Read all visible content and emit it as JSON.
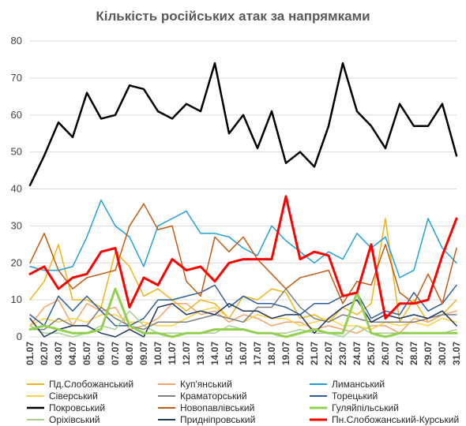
{
  "chart_data": {
    "type": "line",
    "title": "Кількість російських атак за напрямками",
    "xlabel": "",
    "ylabel": "",
    "ylim": [
      0,
      80
    ],
    "yticks": [
      0,
      10,
      20,
      30,
      40,
      50,
      60,
      70,
      80
    ],
    "grid": true,
    "legend_position": "bottom",
    "x": [
      "01.07",
      "02.07",
      "03.07",
      "04.07",
      "05.07",
      "06.07",
      "07.07",
      "08.07",
      "09.07",
      "10.07",
      "11.07",
      "12.07",
      "13.07",
      "14.07",
      "15.07",
      "16.07",
      "17.07",
      "18.07",
      "19.07",
      "20.07",
      "21.07",
      "22.07",
      "23.07",
      "24.07",
      "25.07",
      "26.07",
      "27.07",
      "28.07",
      "29.07",
      "30.07",
      "31.07"
    ],
    "series": [
      {
        "name": "Пд.Слобожанський",
        "color": "#f0b418",
        "width": 1.5,
        "values": [
          10,
          15,
          25,
          10,
          10,
          8,
          23,
          19,
          11,
          13,
          10,
          7,
          10,
          9,
          5,
          11,
          10,
          13,
          12,
          5,
          6,
          4,
          8,
          6,
          9,
          32,
          4,
          10,
          4,
          6,
          10
        ]
      },
      {
        "name": "Куп'янський",
        "color": "#f4a46a",
        "width": 1.5,
        "values": [
          3,
          8,
          10,
          3,
          9,
          7,
          8,
          2,
          3,
          5,
          9,
          9,
          6,
          7,
          4,
          6,
          5,
          3,
          4,
          4,
          2,
          3,
          2,
          1,
          3,
          3,
          1,
          5,
          4,
          6,
          7
        ]
      },
      {
        "name": "Лиманський",
        "color": "#22a0dc",
        "width": 1.5,
        "values": [
          19,
          18,
          18,
          19,
          27,
          37,
          30,
          27,
          19,
          30,
          32,
          34,
          28,
          28,
          27,
          24,
          22,
          30,
          26,
          23,
          20,
          23,
          21,
          28,
          24,
          27,
          16,
          18,
          32,
          24,
          20
        ]
      },
      {
        "name": "Сіверський",
        "color": "#ffd040",
        "width": 1.5,
        "values": [
          3,
          5,
          4,
          5,
          4,
          6,
          6,
          4,
          4,
          3,
          3,
          5,
          7,
          8,
          5,
          4,
          6,
          5,
          5,
          3,
          4,
          5,
          3,
          3,
          2,
          4,
          3,
          4,
          3,
          5,
          4
        ]
      },
      {
        "name": "Краматорський",
        "color": "#7f7f7f",
        "width": 1.5,
        "values": [
          2,
          2,
          5,
          3,
          3,
          8,
          5,
          3,
          2,
          4,
          4,
          4,
          5,
          6,
          5,
          4,
          8,
          8,
          13,
          8,
          5,
          4,
          6,
          5,
          4,
          4,
          4,
          4,
          5,
          6,
          6
        ]
      },
      {
        "name": "Торецький",
        "color": "#2e5f9c",
        "width": 1.5,
        "values": [
          6,
          3,
          11,
          7,
          11,
          7,
          3,
          3,
          5,
          10,
          10,
          11,
          12,
          14,
          8,
          11,
          9,
          9,
          8,
          6,
          9,
          9,
          11,
          12,
          5,
          7,
          6,
          12,
          7,
          9,
          14
        ]
      },
      {
        "name": "Покровський",
        "color": "#000000",
        "width": 2.5,
        "values": [
          41,
          49,
          58,
          54,
          66,
          59,
          60,
          68,
          67,
          61,
          59,
          63,
          61,
          74,
          55,
          60,
          51,
          61,
          47,
          50,
          46,
          57,
          74,
          61,
          57,
          51,
          63,
          57,
          57,
          63,
          49
        ]
      },
      {
        "name": "Новопавлівський",
        "color": "#c55a11",
        "width": 1.5,
        "values": [
          20,
          28,
          18,
          13,
          16,
          17,
          18,
          30,
          36,
          29,
          30,
          15,
          11,
          27,
          23,
          27,
          21,
          17,
          13,
          16,
          17,
          18,
          9,
          15,
          14,
          25,
          12,
          9,
          17,
          9,
          24
        ]
      },
      {
        "name": "Гуляйпільський",
        "color": "#92d050",
        "width": 3,
        "values": [
          2,
          3,
          2,
          1,
          1,
          2,
          13,
          3,
          1,
          1,
          0,
          1,
          1,
          2,
          2,
          2,
          1,
          1,
          0,
          1,
          2,
          1,
          1,
          12,
          1,
          0,
          1,
          1,
          1,
          1,
          1
        ]
      },
      {
        "name": "Оріхівський",
        "color": "#a9d18e",
        "width": 1.5,
        "values": [
          3,
          1,
          1,
          0,
          1,
          3,
          2,
          7,
          3,
          1,
          1,
          1,
          1,
          1,
          3,
          2,
          1,
          1,
          1,
          2,
          1,
          1,
          0,
          3,
          1,
          1,
          1,
          1,
          1,
          1,
          2
        ]
      },
      {
        "name": "Придніпровський",
        "color": "#1f3864",
        "width": 1.5,
        "values": [
          5,
          0,
          2,
          3,
          3,
          1,
          0,
          2,
          0,
          8,
          9,
          6,
          7,
          6,
          9,
          7,
          7,
          5,
          6,
          6,
          1,
          5,
          8,
          10,
          4,
          6,
          5,
          6,
          5,
          7,
          3
        ]
      },
      {
        "name": "Пн.Слобожанський-Курський",
        "color": "#ff0000",
        "width": 3,
        "values": [
          17,
          19,
          13,
          16,
          17,
          23,
          24,
          8,
          16,
          14,
          21,
          18,
          19,
          15,
          20,
          21,
          21,
          21,
          38,
          21,
          23,
          22,
          11,
          12,
          25,
          5,
          9,
          9,
          10,
          22,
          32
        ]
      }
    ]
  }
}
